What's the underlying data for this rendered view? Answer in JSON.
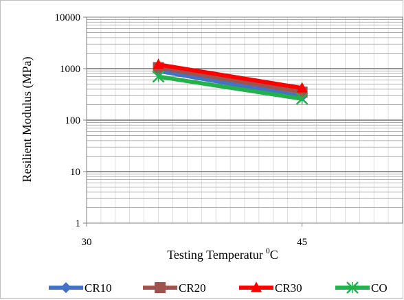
{
  "chart_data": {
    "type": "line",
    "title": "",
    "xlabel": "Testing Temperatur",
    "xlabel_superscript": "0",
    "xlabel_unit": "C",
    "ylabel": "Resilient  Modulus (MPa)",
    "xlim": [
      30,
      52
    ],
    "ylim": [
      1,
      10000
    ],
    "yscale": "log",
    "x_ticks": [
      "30",
      "45"
    ],
    "y_ticks": [
      "1",
      "10",
      "100",
      "1000",
      "10000"
    ],
    "grid": true,
    "legend_position": "bottom",
    "x": [
      35,
      45
    ],
    "series": [
      {
        "name": "CR10",
        "values": [
          900,
          290
        ],
        "color": "#4472c4",
        "marker": "diamond"
      },
      {
        "name": "CR20",
        "values": [
          1050,
          350
        ],
        "color": "#a0524d",
        "marker": "square"
      },
      {
        "name": "CR30",
        "values": [
          1200,
          420
        ],
        "color": "#ff0000",
        "marker": "triangle"
      },
      {
        "name": "CO",
        "values": [
          700,
          260
        ],
        "color": "#22b14c",
        "marker": "x"
      }
    ]
  }
}
